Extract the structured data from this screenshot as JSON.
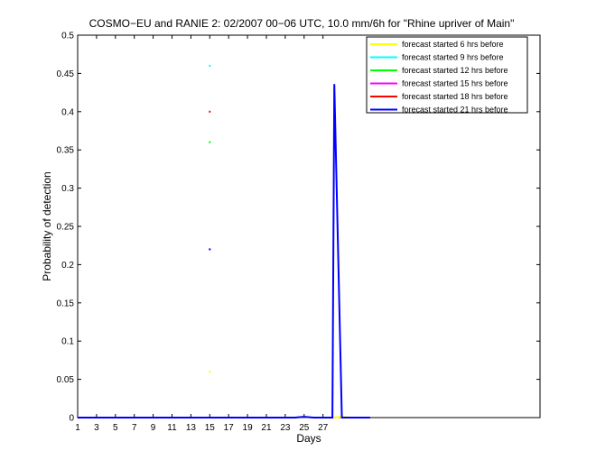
{
  "chart_data": {
    "type": "line",
    "title": "COSMO−EU and RANIE 2: 02/2007 00−06 UTC, 10.0 mm/6h for \"Rhine upriver of Main\"",
    "xlabel": "Days",
    "ylabel": "Probability of detection",
    "xlim": [
      1,
      50
    ],
    "ylim": [
      0,
      0.5
    ],
    "xticks": [
      1,
      3,
      5,
      7,
      9,
      11,
      13,
      15,
      17,
      19,
      21,
      23,
      25,
      27
    ],
    "yticks": [
      0,
      0.05,
      0.1,
      0.15,
      0.2,
      0.25,
      0.3,
      0.35,
      0.4,
      0.45,
      0.5
    ],
    "legend_position": "top-right",
    "series": [
      {
        "name": "forecast started 6 hrs before",
        "color": "#ffff00",
        "points": [
          [
            15,
            0.06
          ]
        ],
        "line": [
          [
            1,
            0
          ],
          [
            24,
            0
          ],
          [
            25,
            0.001
          ],
          [
            26,
            0
          ],
          [
            28,
            0
          ],
          [
            29,
            0.001
          ],
          [
            30,
            0
          ]
        ]
      },
      {
        "name": "forecast started 9 hrs before",
        "color": "#00ffff",
        "points": [
          [
            15,
            0.46
          ]
        ],
        "line": []
      },
      {
        "name": "forecast started 12 hrs before",
        "color": "#00ff00",
        "points": [
          [
            15,
            0.36
          ]
        ],
        "line": []
      },
      {
        "name": "forecast started 15 hrs before",
        "color": "#ff00ff",
        "points": [],
        "line": []
      },
      {
        "name": "forecast started 18 hrs before",
        "color": "#ff0000",
        "points": [
          [
            15,
            0.4
          ]
        ],
        "line": []
      },
      {
        "name": "forecast started 21 hrs before",
        "color": "#0000ff",
        "points": [
          [
            15,
            0.22
          ]
        ],
        "line": [
          [
            1,
            0
          ],
          [
            24,
            0
          ],
          [
            25,
            0.001
          ],
          [
            26,
            0
          ],
          [
            28,
            0
          ],
          [
            28.2,
            0.436
          ],
          [
            29,
            0
          ],
          [
            32,
            0
          ]
        ]
      }
    ]
  }
}
